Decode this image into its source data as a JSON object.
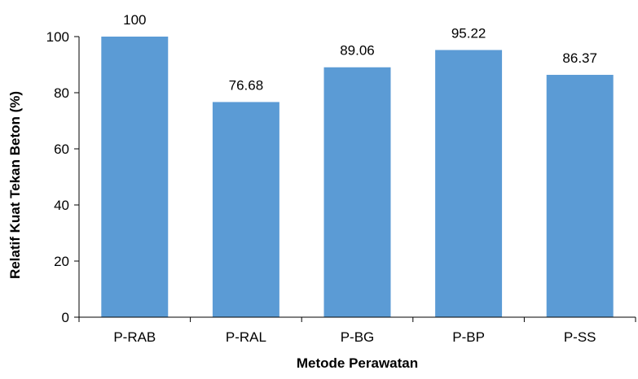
{
  "chart_data": {
    "type": "bar",
    "categories": [
      "P-RAB",
      "P-RAL",
      "P-BG",
      "P-BP",
      "P-SS"
    ],
    "values": [
      100,
      76.68,
      89.06,
      95.22,
      86.37
    ],
    "data_labels": [
      "100",
      "76.68",
      "89.06",
      "95.22",
      "86.37"
    ],
    "title": "",
    "xlabel": "Metode Perawatan",
    "ylabel": "Relatif Kuat Tekan Beton (%)",
    "ylim": [
      0,
      100
    ],
    "yticks": [
      0,
      20,
      40,
      60,
      80,
      100
    ],
    "grid": false,
    "legend": "none",
    "colors": {
      "bar": "#5b9bd5",
      "axis": "#000000",
      "text": "#000000"
    }
  }
}
